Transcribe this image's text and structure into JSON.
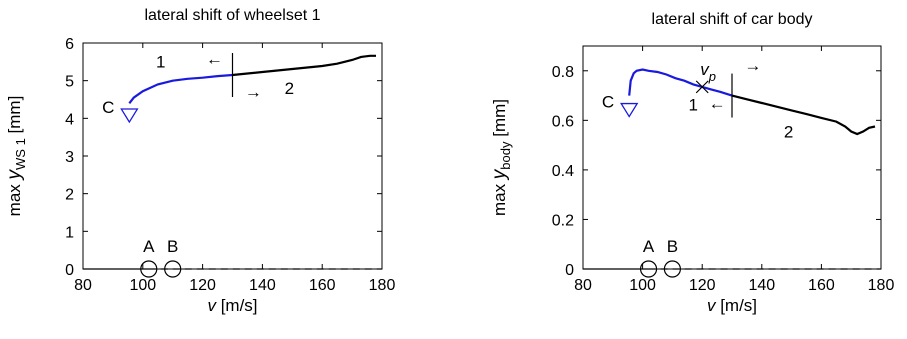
{
  "colors": {
    "branch1": "#1a1adf",
    "branch2": "#000000"
  },
  "chart_data": [
    {
      "type": "line",
      "title": "lateral shift of wheelset 1",
      "xlabel_var": "v",
      "xlabel_unit": "[m/s]",
      "ylabel_prefix": "max",
      "ylabel_var": "y",
      "ylabel_sub": "WS 1",
      "ylabel_unit": "[mm]",
      "xlim": [
        80,
        180
      ],
      "ylim": [
        0,
        6
      ],
      "xticks": [
        "80",
        "100",
        "120",
        "140",
        "160",
        "180"
      ],
      "yticks": [
        "0",
        "1",
        "2",
        "3",
        "4",
        "5",
        "6"
      ],
      "series": [
        {
          "name": "1",
          "color": "#1a1adf",
          "x": [
            95.5,
            97,
            100,
            105,
            110,
            115,
            120,
            125,
            130
          ],
          "y": [
            4.4,
            4.55,
            4.72,
            4.9,
            5.0,
            5.05,
            5.08,
            5.12,
            5.15
          ]
        },
        {
          "name": "2",
          "color": "#000000",
          "x": [
            130,
            135,
            140,
            145,
            150,
            155,
            160,
            165,
            170,
            173,
            176,
            178
          ],
          "y": [
            5.15,
            5.19,
            5.23,
            5.27,
            5.31,
            5.35,
            5.39,
            5.45,
            5.55,
            5.63,
            5.66,
            5.66
          ]
        },
        {
          "name": "trivial solid",
          "color": "#000000",
          "x": [
            80,
            102
          ],
          "y": [
            0,
            0
          ]
        },
        {
          "name": "trivial dashed",
          "color": "#000000",
          "x": [
            102,
            180
          ],
          "y": [
            0,
            0
          ]
        }
      ],
      "annotations": [
        {
          "text": "A",
          "x": 102,
          "y": 0,
          "marker": "circle"
        },
        {
          "text": "B",
          "x": 110,
          "y": 0,
          "marker": "circle"
        },
        {
          "text": "C",
          "x": 95.5,
          "y": 4.3,
          "marker": "triangle-down"
        },
        {
          "text": "1",
          "label_for": "branch1"
        },
        {
          "text": "2",
          "label_for": "branch2"
        },
        {
          "text": "←",
          "direction": "left"
        },
        {
          "text": "→",
          "direction": "right"
        }
      ],
      "bifurcation_x": 130
    },
    {
      "type": "line",
      "title": "lateral shift of car body",
      "xlabel_var": "v",
      "xlabel_unit": "[m/s]",
      "ylabel_prefix": "max",
      "ylabel_var": "y",
      "ylabel_sub": "body",
      "ylabel_unit": "[mm]",
      "xlim": [
        80,
        180
      ],
      "ylim": [
        0,
        0.9
      ],
      "xticks": [
        "80",
        "100",
        "120",
        "140",
        "160",
        "180"
      ],
      "yticks": [
        "0",
        "0.2",
        "0.4",
        "0.6",
        "0.8"
      ],
      "series": [
        {
          "name": "1",
          "color": "#1a1adf",
          "x": [
            95.5,
            96,
            97,
            98,
            100,
            102,
            105,
            108,
            111,
            114,
            117,
            120,
            123,
            126,
            130
          ],
          "y": [
            0.7,
            0.76,
            0.79,
            0.8,
            0.805,
            0.8,
            0.795,
            0.785,
            0.77,
            0.76,
            0.745,
            0.735,
            0.725,
            0.715,
            0.7
          ]
        },
        {
          "name": "2",
          "color": "#000000",
          "x": [
            130,
            135,
            140,
            145,
            150,
            155,
            160,
            165,
            168,
            170,
            172,
            174,
            176,
            178
          ],
          "y": [
            0.7,
            0.685,
            0.67,
            0.655,
            0.64,
            0.625,
            0.61,
            0.595,
            0.575,
            0.555,
            0.545,
            0.555,
            0.57,
            0.575
          ]
        },
        {
          "name": "trivial solid",
          "color": "#000000",
          "x": [
            80,
            102
          ],
          "y": [
            0,
            0
          ]
        },
        {
          "name": "trivial dashed",
          "color": "#000000",
          "x": [
            102,
            180
          ],
          "y": [
            0,
            0
          ]
        }
      ],
      "annotations": [
        {
          "text": "A",
          "x": 102,
          "y": 0,
          "marker": "circle"
        },
        {
          "text": "B",
          "x": 110,
          "y": 0,
          "marker": "circle"
        },
        {
          "text": "C",
          "x": 95.5,
          "y": 0.7,
          "marker": "triangle-down"
        },
        {
          "text": "1",
          "label_for": "branch1"
        },
        {
          "text": "2",
          "label_for": "branch2"
        },
        {
          "text": "v",
          "sub": "p",
          "x": 120,
          "y": 0.735,
          "marker": "cross"
        },
        {
          "text": "←",
          "direction": "left"
        },
        {
          "text": "→",
          "direction": "right"
        }
      ],
      "bifurcation_x": 130
    }
  ]
}
